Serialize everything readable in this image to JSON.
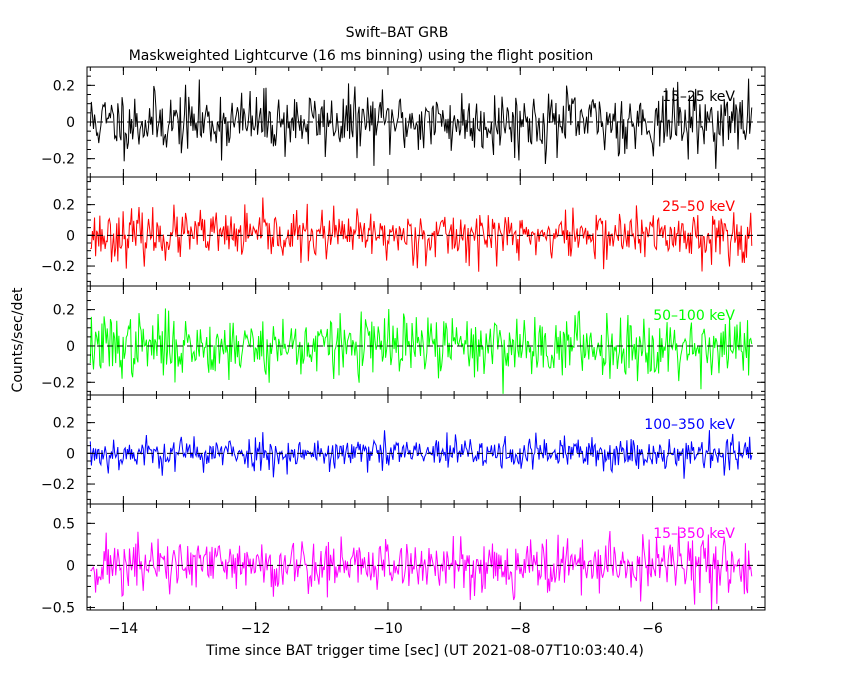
{
  "chart_data": {
    "type": "line",
    "title": "Swift–BAT GRB",
    "subtitle": "Maskweighted Lightcurve (16 ms binning) using the flight position",
    "xlabel": "Time since BAT trigger time [sec] (UT 2021-08-07T10:03:40.4)",
    "ylabel": "Counts/sec/det",
    "xlim": [
      -14.55,
      -4.3
    ],
    "x_ticks": [
      -14,
      -12,
      -10,
      -8,
      -6
    ],
    "x_tick_labels": [
      "−14",
      "−12",
      "−10",
      "−8",
      "−6"
    ],
    "data_x_range": [
      -14.5,
      -4.5
    ],
    "bin_seconds": 0.016,
    "reference_line": 0,
    "panels": [
      {
        "name": "15–25 keV",
        "color": "#000000",
        "ylim": [
          -0.3,
          0.3
        ],
        "ticks": [
          -0.2,
          0,
          0.2
        ],
        "tick_labels": [
          "−0.2",
          "0",
          "0.2"
        ],
        "amplitude": 0.085,
        "seed": 11
      },
      {
        "name": "25–50 keV",
        "color": "#ff0000",
        "ylim": [
          -0.33,
          0.38
        ],
        "ticks": [
          -0.2,
          0,
          0.2
        ],
        "tick_labels": [
          "−0.2",
          "0",
          "0.2"
        ],
        "amplitude": 0.08,
        "seed": 23
      },
      {
        "name": "50–100 keV",
        "color": "#00ff00",
        "ylim": [
          -0.27,
          0.33
        ],
        "ticks": [
          -0.2,
          0,
          0.2
        ],
        "tick_labels": [
          "−0.2",
          "0",
          "0.2"
        ],
        "amplitude": 0.085,
        "seed": 37
      },
      {
        "name": "100–350 keV",
        "color": "#0000ff",
        "ylim": [
          -0.33,
          0.38
        ],
        "ticks": [
          -0.2,
          0,
          0.2
        ],
        "tick_labels": [
          "−0.2",
          "0",
          "0.2"
        ],
        "amplitude": 0.055,
        "seed": 53
      },
      {
        "name": "15–350 keV",
        "color": "#ff00ff",
        "ylim": [
          -0.53,
          0.73
        ],
        "ticks": [
          -0.5,
          0,
          0.5
        ],
        "tick_labels": [
          "−0.5",
          "0",
          "0.5"
        ],
        "amplitude": 0.17,
        "seed": 71
      }
    ]
  }
}
